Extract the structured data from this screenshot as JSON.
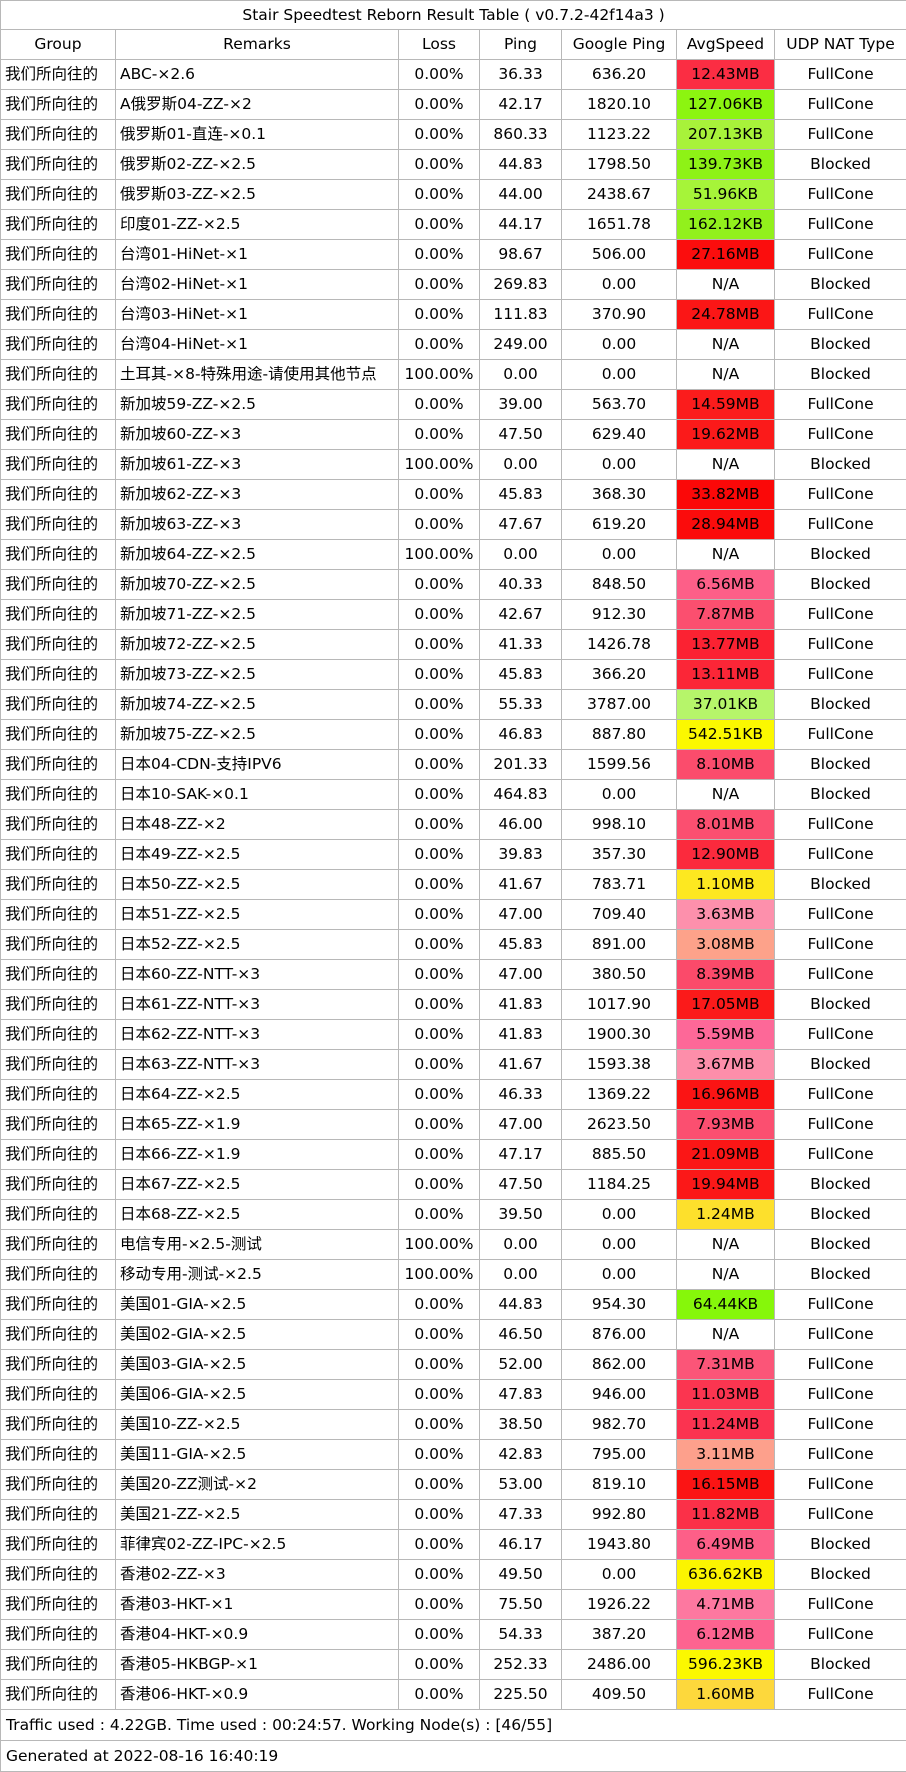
{
  "title": "Stair Speedtest Reborn Result Table ( v0.7.2-42f14a3 )",
  "headers": [
    "Group",
    "Remarks",
    "Loss",
    "Ping",
    "Google Ping",
    "AvgSpeed",
    "UDP NAT Type"
  ],
  "rows": [
    {
      "group": "我们所向往的",
      "remarks": "ABC-×2.6",
      "loss": "0.00%",
      "ping": "36.33",
      "gping": "636.20",
      "speed": "12.43MB",
      "color": "#fb2d43",
      "nat": "FullCone"
    },
    {
      "group": "我们所向往的",
      "remarks": "A俄罗斯04-ZZ-×2",
      "loss": "0.00%",
      "ping": "42.17",
      "gping": "1820.10",
      "speed": "127.06KB",
      "color": "#8cf510",
      "nat": "FullCone"
    },
    {
      "group": "我们所向往的",
      "remarks": "俄罗斯01-直连-×0.1",
      "loss": "0.00%",
      "ping": "860.33",
      "gping": "1123.22",
      "speed": "207.13KB",
      "color": "#a8f23a",
      "nat": "FullCone"
    },
    {
      "group": "我们所向往的",
      "remarks": "俄罗斯02-ZZ-×2.5",
      "loss": "0.00%",
      "ping": "44.83",
      "gping": "1798.50",
      "speed": "139.73KB",
      "color": "#8ef216",
      "nat": "Blocked"
    },
    {
      "group": "我们所向往的",
      "remarks": "俄罗斯03-ZZ-×2.5",
      "loss": "0.00%",
      "ping": "44.00",
      "gping": "2438.67",
      "speed": "51.96KB",
      "color": "#a6f439",
      "nat": "FullCone"
    },
    {
      "group": "我们所向往的",
      "remarks": "印度01-ZZ-×2.5",
      "loss": "0.00%",
      "ping": "44.17",
      "gping": "1651.78",
      "speed": "162.12KB",
      "color": "#92f01c",
      "nat": "FullCone"
    },
    {
      "group": "我们所向往的",
      "remarks": "台湾01-HiNet-×1",
      "loss": "0.00%",
      "ping": "98.67",
      "gping": "506.00",
      "speed": "27.16MB",
      "color": "#fb0d0d",
      "nat": "FullCone"
    },
    {
      "group": "我们所向往的",
      "remarks": "台湾02-HiNet-×1",
      "loss": "0.00%",
      "ping": "269.83",
      "gping": "0.00",
      "speed": "N/A",
      "color": "",
      "nat": "Blocked"
    },
    {
      "group": "我们所向往的",
      "remarks": "台湾03-HiNet-×1",
      "loss": "0.00%",
      "ping": "111.83",
      "gping": "370.90",
      "speed": "24.78MB",
      "color": "#fb1616",
      "nat": "FullCone"
    },
    {
      "group": "我们所向往的",
      "remarks": "台湾04-HiNet-×1",
      "loss": "0.00%",
      "ping": "249.00",
      "gping": "0.00",
      "speed": "N/A",
      "color": "",
      "nat": "Blocked"
    },
    {
      "group": "我们所向往的",
      "remarks": "土耳其-×8-特殊用途-请使用其他节点",
      "loss": "100.00%",
      "ping": "0.00",
      "gping": "0.00",
      "speed": "N/A",
      "color": "",
      "nat": "Blocked"
    },
    {
      "group": "我们所向往的",
      "remarks": "新加坡59-ZZ-×2.5",
      "loss": "0.00%",
      "ping": "39.00",
      "gping": "563.70",
      "speed": "14.59MB",
      "color": "#fb1c1c",
      "nat": "FullCone"
    },
    {
      "group": "我们所向往的",
      "remarks": "新加坡60-ZZ-×3",
      "loss": "0.00%",
      "ping": "47.50",
      "gping": "629.40",
      "speed": "19.62MB",
      "color": "#fb1a1a",
      "nat": "FullCone"
    },
    {
      "group": "我们所向往的",
      "remarks": "新加坡61-ZZ-×3",
      "loss": "100.00%",
      "ping": "0.00",
      "gping": "0.00",
      "speed": "N/A",
      "color": "",
      "nat": "Blocked"
    },
    {
      "group": "我们所向往的",
      "remarks": "新加坡62-ZZ-×3",
      "loss": "0.00%",
      "ping": "45.83",
      "gping": "368.30",
      "speed": "33.82MB",
      "color": "#fb0808",
      "nat": "FullCone"
    },
    {
      "group": "我们所向往的",
      "remarks": "新加坡63-ZZ-×3",
      "loss": "0.00%",
      "ping": "47.67",
      "gping": "619.20",
      "speed": "28.94MB",
      "color": "#fb0c0c",
      "nat": "FullCone"
    },
    {
      "group": "我们所向往的",
      "remarks": "新加坡64-ZZ-×2.5",
      "loss": "100.00%",
      "ping": "0.00",
      "gping": "0.00",
      "speed": "N/A",
      "color": "",
      "nat": "Blocked"
    },
    {
      "group": "我们所向往的",
      "remarks": "新加坡70-ZZ-×2.5",
      "loss": "0.00%",
      "ping": "40.33",
      "gping": "848.50",
      "speed": "6.56MB",
      "color": "#fd5f88",
      "nat": "Blocked"
    },
    {
      "group": "我们所向往的",
      "remarks": "新加坡71-ZZ-×2.5",
      "loss": "0.00%",
      "ping": "42.67",
      "gping": "912.30",
      "speed": "7.87MB",
      "color": "#fb4f6f",
      "nat": "FullCone"
    },
    {
      "group": "我们所向往的",
      "remarks": "新加坡72-ZZ-×2.5",
      "loss": "0.00%",
      "ping": "41.33",
      "gping": "1426.78",
      "speed": "13.77MB",
      "color": "#fb2232",
      "nat": "FullCone"
    },
    {
      "group": "我们所向往的",
      "remarks": "新加坡73-ZZ-×2.5",
      "loss": "0.00%",
      "ping": "45.83",
      "gping": "366.20",
      "speed": "13.11MB",
      "color": "#fb2637",
      "nat": "FullCone"
    },
    {
      "group": "我们所向往的",
      "remarks": "新加坡74-ZZ-×2.5",
      "loss": "0.00%",
      "ping": "55.33",
      "gping": "3787.00",
      "speed": "37.01KB",
      "color": "#b6f56a",
      "nat": "Blocked"
    },
    {
      "group": "我们所向往的",
      "remarks": "新加坡75-ZZ-×2.5",
      "loss": "0.00%",
      "ping": "46.83",
      "gping": "887.80",
      "speed": "542.51KB",
      "color": "#fbf800",
      "nat": "FullCone"
    },
    {
      "group": "我们所向往的",
      "remarks": "日本04-CDN-支持IPV6",
      "loss": "0.00%",
      "ping": "201.33",
      "gping": "1599.56",
      "speed": "8.10MB",
      "color": "#fb4c6c",
      "nat": "Blocked"
    },
    {
      "group": "我们所向往的",
      "remarks": "日本10-SAK-×0.1",
      "loss": "0.00%",
      "ping": "464.83",
      "gping": "0.00",
      "speed": "N/A",
      "color": "",
      "nat": "Blocked"
    },
    {
      "group": "我们所向往的",
      "remarks": "日本48-ZZ-×2",
      "loss": "0.00%",
      "ping": "46.00",
      "gping": "998.10",
      "speed": "8.01MB",
      "color": "#fb4f70",
      "nat": "FullCone"
    },
    {
      "group": "我们所向往的",
      "remarks": "日本49-ZZ-×2.5",
      "loss": "0.00%",
      "ping": "39.83",
      "gping": "357.30",
      "speed": "12.90MB",
      "color": "#fb2a3d",
      "nat": "FullCone"
    },
    {
      "group": "我们所向往的",
      "remarks": "日本50-ZZ-×2.5",
      "loss": "0.00%",
      "ping": "41.67",
      "gping": "783.71",
      "speed": "1.10MB",
      "color": "#fde820",
      "nat": "Blocked"
    },
    {
      "group": "我们所向往的",
      "remarks": "日本51-ZZ-×2.5",
      "loss": "0.00%",
      "ping": "47.00",
      "gping": "709.40",
      "speed": "3.63MB",
      "color": "#fd90ac",
      "nat": "FullCone"
    },
    {
      "group": "我们所向往的",
      "remarks": "日本52-ZZ-×2.5",
      "loss": "0.00%",
      "ping": "45.83",
      "gping": "891.00",
      "speed": "3.08MB",
      "color": "#fda28a",
      "nat": "FullCone"
    },
    {
      "group": "我们所向往的",
      "remarks": "日本60-ZZ-NTT-×3",
      "loss": "0.00%",
      "ping": "47.00",
      "gping": "380.50",
      "speed": "8.39MB",
      "color": "#fb4a6a",
      "nat": "FullCone"
    },
    {
      "group": "我们所向往的",
      "remarks": "日本61-ZZ-NTT-×3",
      "loss": "0.00%",
      "ping": "41.83",
      "gping": "1017.90",
      "speed": "17.05MB",
      "color": "#fb1a1a",
      "nat": "Blocked"
    },
    {
      "group": "我们所向往的",
      "remarks": "日本62-ZZ-NTT-×3",
      "loss": "0.00%",
      "ping": "41.83",
      "gping": "1900.30",
      "speed": "5.59MB",
      "color": "#fd6898",
      "nat": "FullCone"
    },
    {
      "group": "我们所向往的",
      "remarks": "日本63-ZZ-NTT-×3",
      "loss": "0.00%",
      "ping": "41.67",
      "gping": "1593.38",
      "speed": "3.67MB",
      "color": "#fd8eaa",
      "nat": "Blocked"
    },
    {
      "group": "我们所向往的",
      "remarks": "日本64-ZZ-×2.5",
      "loss": "0.00%",
      "ping": "46.33",
      "gping": "1369.22",
      "speed": "16.96MB",
      "color": "#fb1414",
      "nat": "FullCone"
    },
    {
      "group": "我们所向往的",
      "remarks": "日本65-ZZ-×1.9",
      "loss": "0.00%",
      "ping": "47.00",
      "gping": "2623.50",
      "speed": "7.93MB",
      "color": "#fb4f70",
      "nat": "FullCone"
    },
    {
      "group": "我们所向往的",
      "remarks": "日本66-ZZ-×1.9",
      "loss": "0.00%",
      "ping": "47.17",
      "gping": "885.50",
      "speed": "21.09MB",
      "color": "#fb1616",
      "nat": "FullCone"
    },
    {
      "group": "我们所向往的",
      "remarks": "日本67-ZZ-×2.5",
      "loss": "0.00%",
      "ping": "47.50",
      "gping": "1184.25",
      "speed": "19.94MB",
      "color": "#fb1818",
      "nat": "Blocked"
    },
    {
      "group": "我们所向往的",
      "remarks": "日本68-ZZ-×2.5",
      "loss": "0.00%",
      "ping": "39.50",
      "gping": "0.00",
      "speed": "1.24MB",
      "color": "#fde02c",
      "nat": "Blocked"
    },
    {
      "group": "我们所向往的",
      "remarks": "电信专用-×2.5-测试",
      "loss": "100.00%",
      "ping": "0.00",
      "gping": "0.00",
      "speed": "N/A",
      "color": "",
      "nat": "Blocked"
    },
    {
      "group": "我们所向往的",
      "remarks": "移动专用-测试-×2.5",
      "loss": "100.00%",
      "ping": "0.00",
      "gping": "0.00",
      "speed": "N/A",
      "color": "",
      "nat": "Blocked"
    },
    {
      "group": "我们所向往的",
      "remarks": "美国01-GIA-×2.5",
      "loss": "0.00%",
      "ping": "44.83",
      "gping": "954.30",
      "speed": "64.44KB",
      "color": "#86f70a",
      "nat": "FullCone"
    },
    {
      "group": "我们所向往的",
      "remarks": "美国02-GIA-×2.5",
      "loss": "0.00%",
      "ping": "46.50",
      "gping": "876.00",
      "speed": "N/A",
      "color": "",
      "nat": "FullCone"
    },
    {
      "group": "我们所向往的",
      "remarks": "美国03-GIA-×2.5",
      "loss": "0.00%",
      "ping": "52.00",
      "gping": "862.00",
      "speed": "7.31MB",
      "color": "#fb5578",
      "nat": "FullCone"
    },
    {
      "group": "我们所向往的",
      "remarks": "美国06-GIA-×2.5",
      "loss": "0.00%",
      "ping": "47.83",
      "gping": "946.00",
      "speed": "11.03MB",
      "color": "#fb3550",
      "nat": "FullCone"
    },
    {
      "group": "我们所向往的",
      "remarks": "美国10-ZZ-×2.5",
      "loss": "0.00%",
      "ping": "38.50",
      "gping": "982.70",
      "speed": "11.24MB",
      "color": "#fb3350",
      "nat": "FullCone"
    },
    {
      "group": "我们所向往的",
      "remarks": "美国11-GIA-×2.5",
      "loss": "0.00%",
      "ping": "42.83",
      "gping": "795.00",
      "speed": "3.11MB",
      "color": "#fda08c",
      "nat": "FullCone"
    },
    {
      "group": "我们所向往的",
      "remarks": "美国20-ZZ测试-×2",
      "loss": "0.00%",
      "ping": "53.00",
      "gping": "819.10",
      "speed": "16.15MB",
      "color": "#fb1414",
      "nat": "FullCone"
    },
    {
      "group": "我们所向往的",
      "remarks": "美国21-ZZ-×2.5",
      "loss": "0.00%",
      "ping": "47.33",
      "gping": "992.80",
      "speed": "11.82MB",
      "color": "#fb3048",
      "nat": "FullCone"
    },
    {
      "group": "我们所向往的",
      "remarks": "菲律宾02-ZZ-IPC-×2.5",
      "loss": "0.00%",
      "ping": "46.17",
      "gping": "1943.80",
      "speed": "6.49MB",
      "color": "#fd5f88",
      "nat": "Blocked"
    },
    {
      "group": "我们所向往的",
      "remarks": "香港02-ZZ-×3",
      "loss": "0.00%",
      "ping": "49.50",
      "gping": "0.00",
      "speed": "636.62KB",
      "color": "#fbf400",
      "nat": "Blocked"
    },
    {
      "group": "我们所向往的",
      "remarks": "香港03-HKT-×1",
      "loss": "0.00%",
      "ping": "75.50",
      "gping": "1926.22",
      "speed": "4.71MB",
      "color": "#fd78a0",
      "nat": "FullCone"
    },
    {
      "group": "我们所向往的",
      "remarks": "香港04-HKT-×0.9",
      "loss": "0.00%",
      "ping": "54.33",
      "gping": "387.20",
      "speed": "6.12MB",
      "color": "#fd6390",
      "nat": "FullCone"
    },
    {
      "group": "我们所向往的",
      "remarks": "香港05-HKBGP-×1",
      "loss": "0.00%",
      "ping": "252.33",
      "gping": "2486.00",
      "speed": "596.23KB",
      "color": "#fbf800",
      "nat": "Blocked"
    },
    {
      "group": "我们所向往的",
      "remarks": "香港06-HKT-×0.9",
      "loss": "0.00%",
      "ping": "225.50",
      "gping": "409.50",
      "speed": "1.60MB",
      "color": "#fdd83c",
      "nat": "FullCone"
    }
  ],
  "footer_traffic": "Traffic used : 4.22GB. Time used : 00:24:57. Working Node(s) : [46/55]",
  "footer_generated": "Generated at 2022-08-16 16:40:19"
}
